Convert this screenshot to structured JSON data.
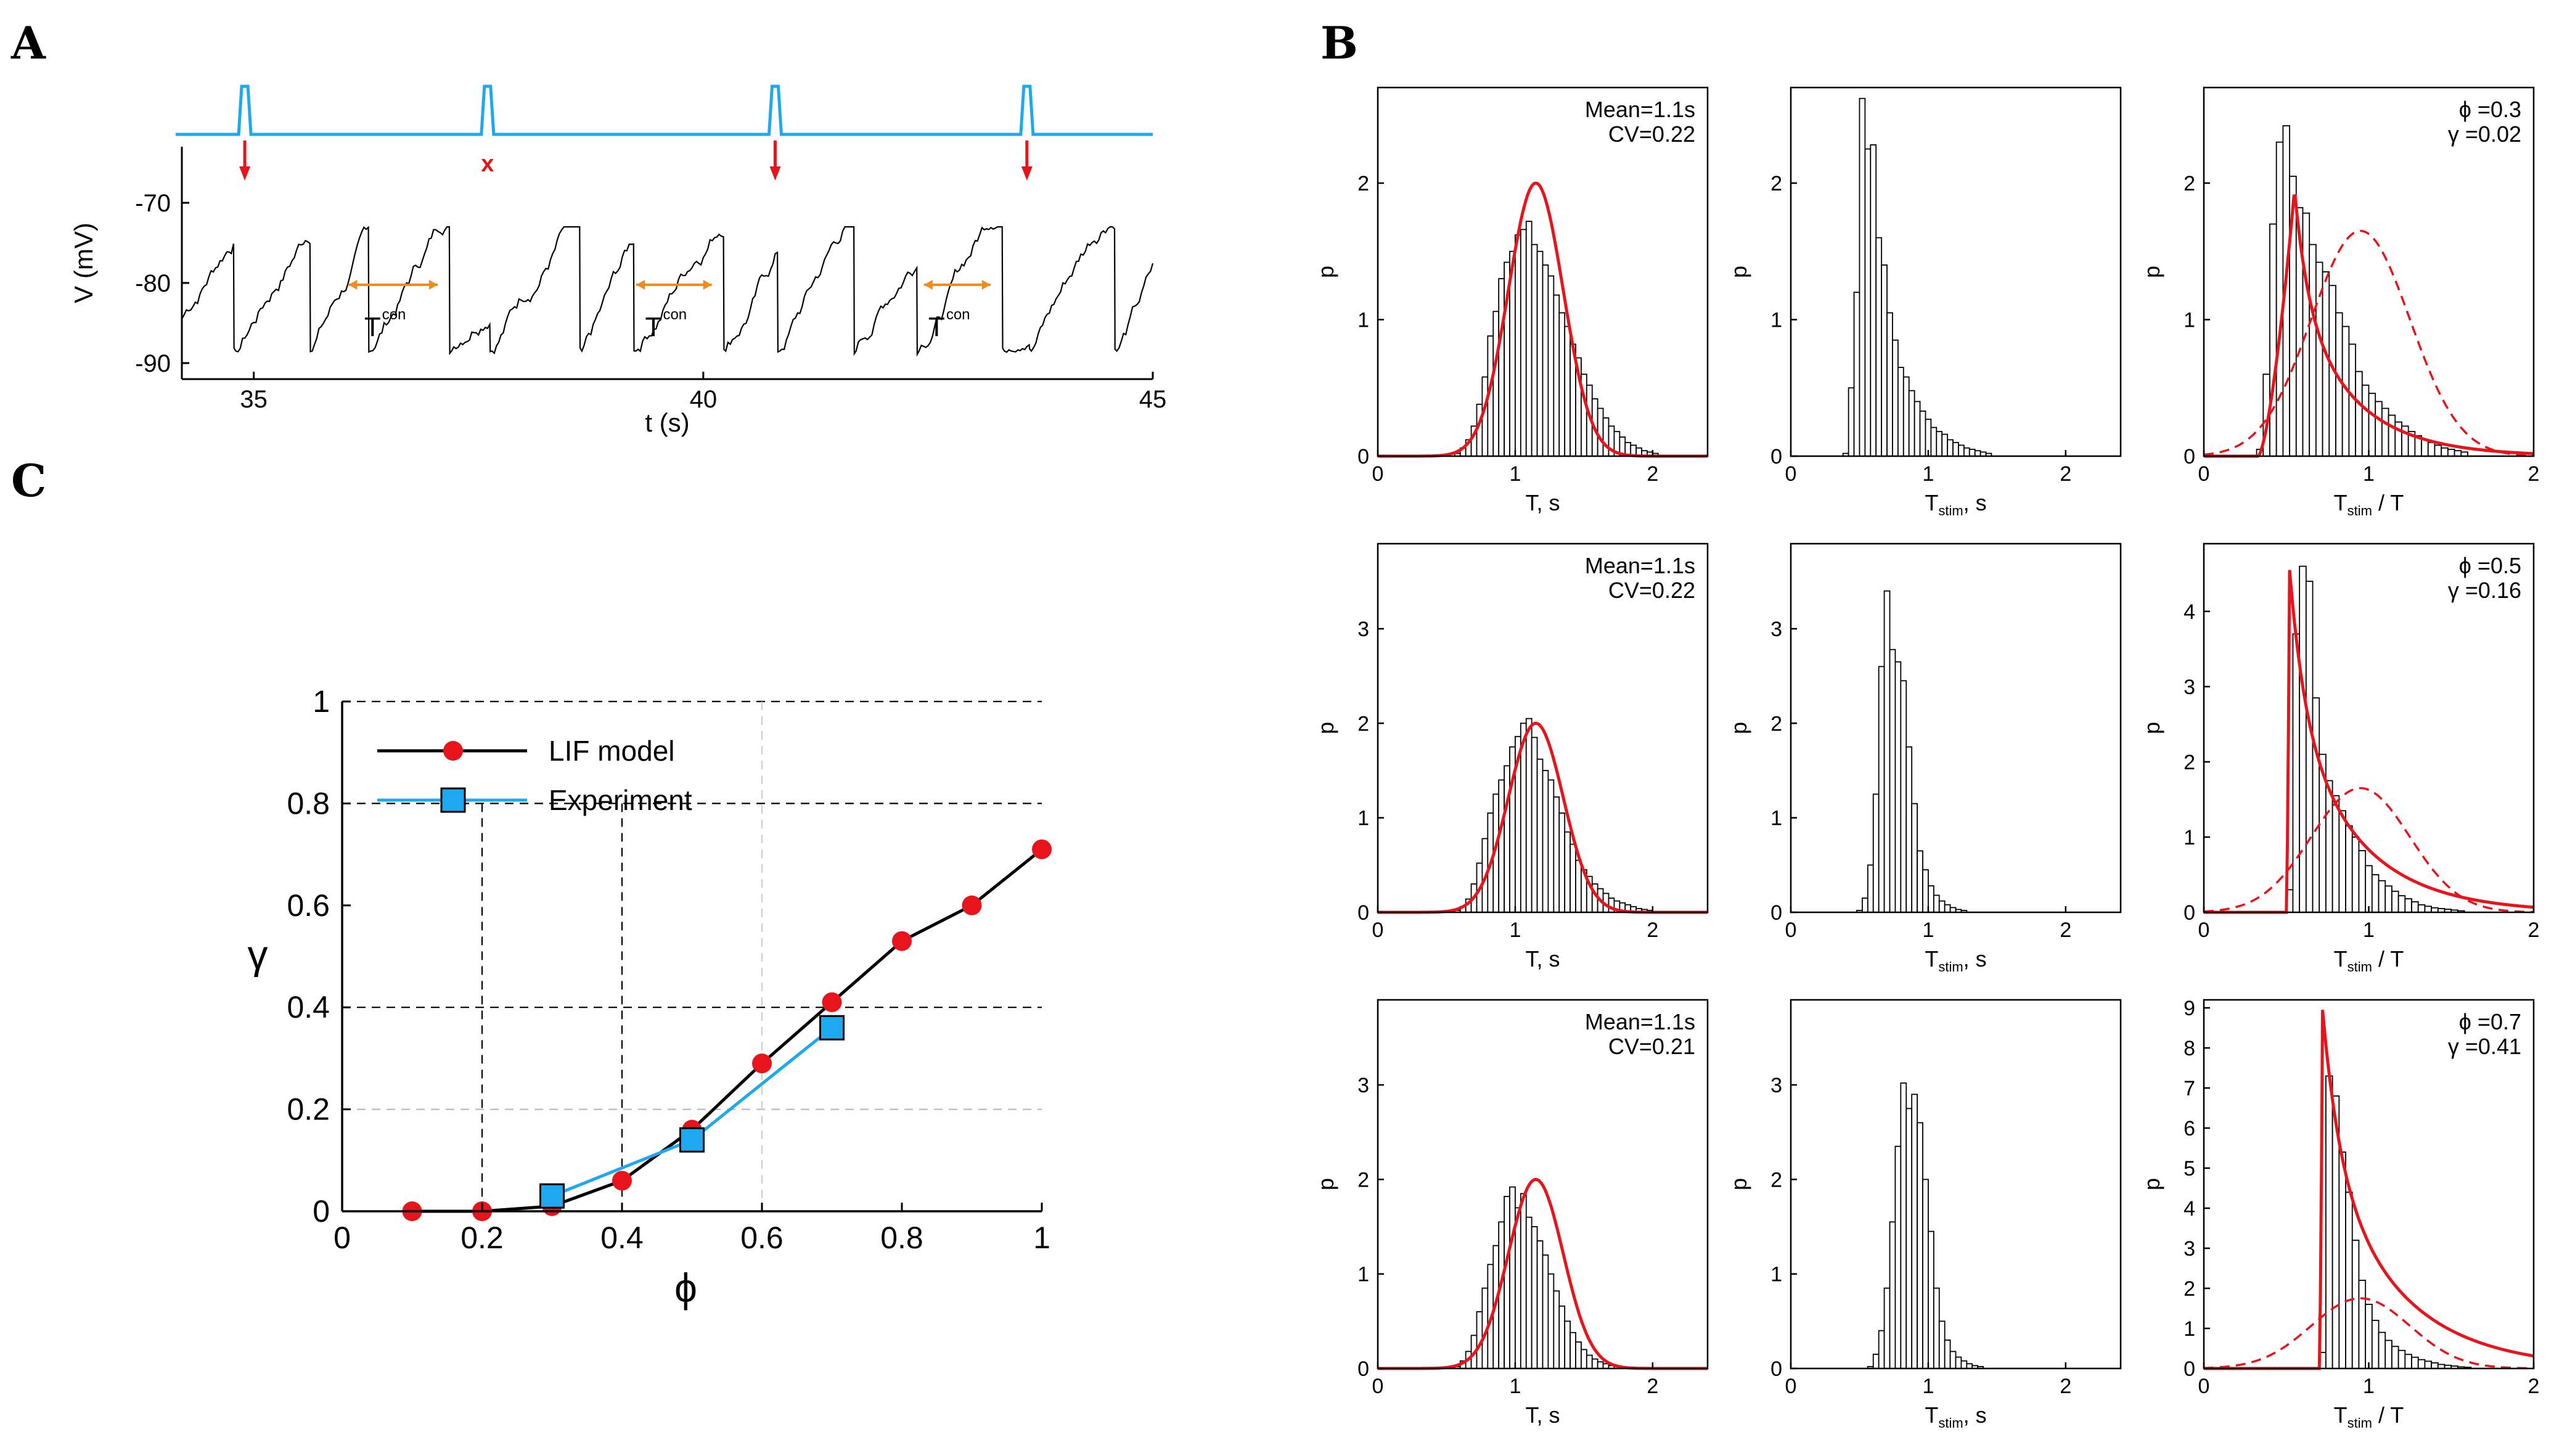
{
  "panel_labels": {
    "a": "A",
    "b": "B",
    "c": "C"
  },
  "colors": {
    "stimulus": "#1EA8F0",
    "arrow": "#E8141C",
    "orange": "#F08C1E",
    "black": "#000000",
    "model": "#E8141C",
    "experiment": "#1EA8F0"
  },
  "chart_data": [
    {
      "id": "A",
      "type": "line",
      "title": "",
      "xlabel": "t (s)",
      "ylabel": "V (mV)",
      "xlim": [
        34.2,
        45
      ],
      "ylim": [
        -92,
        -63
      ],
      "xticks": [
        35,
        40,
        45
      ],
      "yticks": [
        -70,
        -80,
        -90
      ],
      "stimulus_times": [
        34.9,
        37.6,
        40.8,
        43.6
      ],
      "arrow_times": [
        34.9,
        40.8,
        43.6
      ],
      "missed_marker": "x",
      "spike_times": [
        34.75,
        35.6,
        36.25,
        37.15,
        37.6,
        38.6,
        39.2,
        40.2,
        40.8,
        41.65,
        42.35,
        43.3,
        43.6,
        44.55
      ],
      "tcon_intervals": [
        [
          36.0,
          37.1
        ],
        [
          39.2,
          40.15
        ],
        [
          42.4,
          43.25
        ]
      ],
      "tcon_label": "T",
      "tcon_superscript": "con"
    },
    {
      "id": "B",
      "type": "bar",
      "panels": [
        {
          "type": "bar",
          "xlabel": "T, s",
          "ylabel": "p",
          "xlim": [
            0,
            2.4
          ],
          "ylim": [
            0,
            2.7
          ],
          "yticks": [
            0,
            1,
            2
          ],
          "xticks": [
            0,
            1,
            2
          ],
          "annotation": [
            "Mean=1.1s",
            "CV=0.22"
          ],
          "hist": {
            "start": 0.56,
            "width": 0.04,
            "values": [
              0.02,
              0.06,
              0.12,
              0.22,
              0.38,
              0.58,
              0.88,
              1.06,
              1.3,
              1.42,
              1.5,
              1.62,
              1.66,
              1.72,
              1.55,
              1.5,
              1.4,
              1.32,
              1.18,
              1.05,
              0.95,
              0.82,
              0.72,
              0.6,
              0.52,
              0.42,
              0.35,
              0.28,
              0.22,
              0.18,
              0.14,
              0.1,
              0.08,
              0.06,
              0.04,
              0.03,
              0.02
            ]
          },
          "curves": [
            {
              "name": "fit",
              "style": "solid",
              "mean": 1.15,
              "sd": 0.2,
              "peak": 2.0
            }
          ]
        },
        {
          "type": "bar",
          "xlabel": "T",
          "xlabel_sub": "stim",
          "xlabel_suffix": ", s",
          "ylabel": "p",
          "xlim": [
            0,
            2.4
          ],
          "ylim": [
            0,
            2.7
          ],
          "yticks": [
            0,
            1,
            2
          ],
          "xticks": [
            0,
            1,
            2
          ],
          "hist": {
            "start": 0.38,
            "width": 0.04,
            "values": [
              0.02,
              0.5,
              1.2,
              2.62,
              2.25,
              2.28,
              1.6,
              1.4,
              1.05,
              0.85,
              0.65,
              0.58,
              0.48,
              0.4,
              0.33,
              0.27,
              0.21,
              0.18,
              0.16,
              0.12,
              0.1,
              0.08,
              0.06,
              0.05,
              0.04,
              0.03,
              0.02
            ]
          }
        },
        {
          "type": "bar",
          "xlabel": "T",
          "xlabel_sub": "stim",
          "xlabel_suffix": " / T",
          "ylabel": "p",
          "xlim": [
            0,
            2
          ],
          "ylim": [
            0,
            2.7
          ],
          "yticks": [
            0,
            1,
            2
          ],
          "xticks": [
            0,
            1,
            2
          ],
          "annotation": [
            "ϕ =0.3",
            "γ =0.02"
          ],
          "hist": {
            "start": 0.32,
            "width": 0.04,
            "values": [
              0.05,
              0.6,
              1.7,
              2.3,
              2.42,
              2.05,
              1.82,
              1.78,
              1.55,
              1.42,
              1.35,
              1.25,
              1.05,
              0.95,
              0.82,
              0.62,
              0.52,
              0.46,
              0.4,
              0.35,
              0.3,
              0.25,
              0.22,
              0.18,
              0.15,
              0.12,
              0.1,
              0.08,
              0.06,
              0.05,
              0.04,
              0.03
            ]
          },
          "curves": [
            {
              "name": "solid",
              "style": "solid",
              "onset": 0.33,
              "peak_x": 0.55,
              "peak": 1.95,
              "tail": 0.35
            },
            {
              "name": "dashed",
              "style": "dashed",
              "mean": 0.95,
              "sd": 0.3,
              "peak": 1.65
            }
          ]
        },
        {
          "type": "bar",
          "xlabel": "T, s",
          "ylabel": "p",
          "xlim": [
            0,
            2.4
          ],
          "ylim": [
            0,
            3.9
          ],
          "yticks": [
            0,
            1,
            2,
            3
          ],
          "xticks": [
            0,
            1,
            2
          ],
          "annotation": [
            "Mean=1.1s",
            "CV=0.22"
          ],
          "hist": {
            "start": 0.56,
            "width": 0.04,
            "values": [
              0.02,
              0.06,
              0.14,
              0.3,
              0.52,
              0.78,
              1.05,
              1.25,
              1.4,
              1.55,
              1.75,
              1.86,
              2.0,
              2.05,
              1.85,
              1.62,
              1.5,
              1.4,
              1.22,
              1.05,
              0.85,
              0.72,
              0.55,
              0.45,
              0.38,
              0.3,
              0.25,
              0.2,
              0.15,
              0.12,
              0.1,
              0.08,
              0.06,
              0.04,
              0.03,
              0.02
            ]
          },
          "curves": [
            {
              "name": "fit",
              "style": "solid",
              "mean": 1.15,
              "sd": 0.2,
              "peak": 2.0
            }
          ]
        },
        {
          "type": "bar",
          "xlabel": "T",
          "xlabel_sub": "stim",
          "xlabel_suffix": ", s",
          "ylabel": "p",
          "xlim": [
            0,
            2.4
          ],
          "ylim": [
            0,
            3.9
          ],
          "yticks": [
            0,
            1,
            2,
            3
          ],
          "xticks": [
            0,
            1,
            2
          ],
          "hist": {
            "start": 0.48,
            "width": 0.04,
            "values": [
              0.02,
              0.15,
              0.5,
              1.25,
              2.6,
              3.4,
              2.78,
              2.65,
              2.45,
              1.75,
              1.15,
              0.65,
              0.45,
              0.28,
              0.18,
              0.12,
              0.08,
              0.05,
              0.03,
              0.02
            ]
          }
        },
        {
          "type": "bar",
          "xlabel": "T",
          "xlabel_sub": "stim",
          "xlabel_suffix": " / T",
          "ylabel": "p",
          "xlim": [
            0,
            2
          ],
          "ylim": [
            0,
            4.9
          ],
          "yticks": [
            0,
            1,
            2,
            3,
            4
          ],
          "xticks": [
            0,
            1,
            2
          ],
          "annotation": [
            "ϕ =0.5",
            "γ =0.16"
          ],
          "hist": {
            "start": 0.5,
            "width": 0.04,
            "values": [
              0.3,
              3.7,
              4.6,
              4.4,
              2.85,
              2.1,
              1.75,
              1.55,
              1.35,
              1.15,
              1.0,
              0.82,
              0.62,
              0.5,
              0.42,
              0.35,
              0.28,
              0.22,
              0.18,
              0.14,
              0.1,
              0.08,
              0.06,
              0.05,
              0.04,
              0.03,
              0.02
            ]
          },
          "curves": [
            {
              "name": "solid",
              "style": "solid",
              "onset": 0.5,
              "peak_x": 0.52,
              "peak": 4.55,
              "tail": 0.4
            },
            {
              "name": "dashed",
              "style": "dashed",
              "mean": 0.95,
              "sd": 0.3,
              "peak": 1.65
            }
          ]
        },
        {
          "type": "bar",
          "xlabel": "T, s",
          "ylabel": "p",
          "xlim": [
            0,
            2.4
          ],
          "ylim": [
            0,
            3.9
          ],
          "yticks": [
            0,
            1,
            2,
            3
          ],
          "xticks": [
            0,
            1,
            2
          ],
          "annotation": [
            "Mean=1.1s",
            "CV=0.21"
          ],
          "hist": {
            "start": 0.56,
            "width": 0.04,
            "values": [
              0.02,
              0.08,
              0.18,
              0.35,
              0.6,
              0.85,
              1.1,
              1.3,
              1.55,
              1.82,
              1.92,
              1.7,
              1.85,
              1.6,
              1.5,
              1.35,
              1.2,
              1.0,
              0.82,
              0.66,
              0.5,
              0.38,
              0.28,
              0.2,
              0.14,
              0.1,
              0.07,
              0.05,
              0.03,
              0.02
            ]
          },
          "curves": [
            {
              "name": "fit",
              "style": "solid",
              "mean": 1.15,
              "sd": 0.2,
              "peak": 2.0
            }
          ]
        },
        {
          "type": "bar",
          "xlabel": "T",
          "xlabel_sub": "stim",
          "xlabel_suffix": ", s",
          "ylabel": "p",
          "xlim": [
            0,
            2.4
          ],
          "ylim": [
            0,
            3.9
          ],
          "yticks": [
            0,
            1,
            2,
            3
          ],
          "xticks": [
            0,
            1,
            2
          ],
          "hist": {
            "start": 0.56,
            "width": 0.04,
            "values": [
              0.02,
              0.15,
              0.4,
              0.85,
              1.55,
              2.35,
              3.02,
              2.75,
              2.9,
              2.6,
              2.0,
              1.45,
              0.85,
              0.5,
              0.3,
              0.18,
              0.12,
              0.08,
              0.05,
              0.03,
              0.02
            ]
          }
        },
        {
          "type": "bar",
          "xlabel": "T",
          "xlabel_sub": "stim",
          "xlabel_suffix": " / T",
          "ylabel": "p",
          "xlim": [
            0,
            2
          ],
          "ylim": [
            0,
            9.2
          ],
          "yticks": [
            0,
            1,
            2,
            3,
            4,
            5,
            6,
            7,
            8,
            9
          ],
          "xticks": [
            0,
            1,
            2
          ],
          "annotation": [
            "ϕ =0.7",
            "γ =0.41"
          ],
          "hist": {
            "start": 0.7,
            "width": 0.04,
            "values": [
              0.4,
              7.3,
              6.8,
              5.4,
              4.4,
              3.2,
              2.2,
              1.6,
              1.2,
              0.9,
              0.7,
              0.55,
              0.45,
              0.35,
              0.28,
              0.22,
              0.18,
              0.14,
              0.1,
              0.08,
              0.06,
              0.04,
              0.03
            ]
          },
          "curves": [
            {
              "name": "solid",
              "style": "solid",
              "onset": 0.7,
              "peak_x": 0.72,
              "peak": 8.95,
              "tail": 0.45
            },
            {
              "name": "dashed",
              "style": "dashed",
              "mean": 0.95,
              "sd": 0.3,
              "peak": 1.75
            }
          ]
        }
      ]
    },
    {
      "id": "C",
      "type": "line",
      "title": "",
      "xlabel": "ϕ",
      "ylabel": "γ",
      "xlim": [
        0,
        1
      ],
      "ylim": [
        0,
        1
      ],
      "xticks": [
        0,
        0.2,
        0.4,
        0.6,
        0.8,
        1
      ],
      "xtick_labels": [
        "0",
        "0.2",
        "0.4",
        "0.6",
        "0.8",
        "1"
      ],
      "yticks": [
        0,
        0.2,
        0.4,
        0.6,
        0.8,
        1
      ],
      "ytick_labels": [
        "0",
        "0.2",
        "0.4",
        "0.6",
        "0.8",
        "1"
      ],
      "legend_position": "top-left",
      "series": [
        {
          "name": "LIF model",
          "marker": "circle",
          "x": [
            0.1,
            0.2,
            0.3,
            0.4,
            0.5,
            0.6,
            0.7,
            0.8,
            0.9,
            1.0
          ],
          "y": [
            0.0,
            0.0,
            0.01,
            0.06,
            0.16,
            0.29,
            0.41,
            0.53,
            0.6,
            0.71
          ]
        },
        {
          "name": "Experiment",
          "marker": "square",
          "x": [
            0.3,
            0.5,
            0.7
          ],
          "y": [
            0.03,
            0.14,
            0.36
          ]
        }
      ]
    }
  ]
}
